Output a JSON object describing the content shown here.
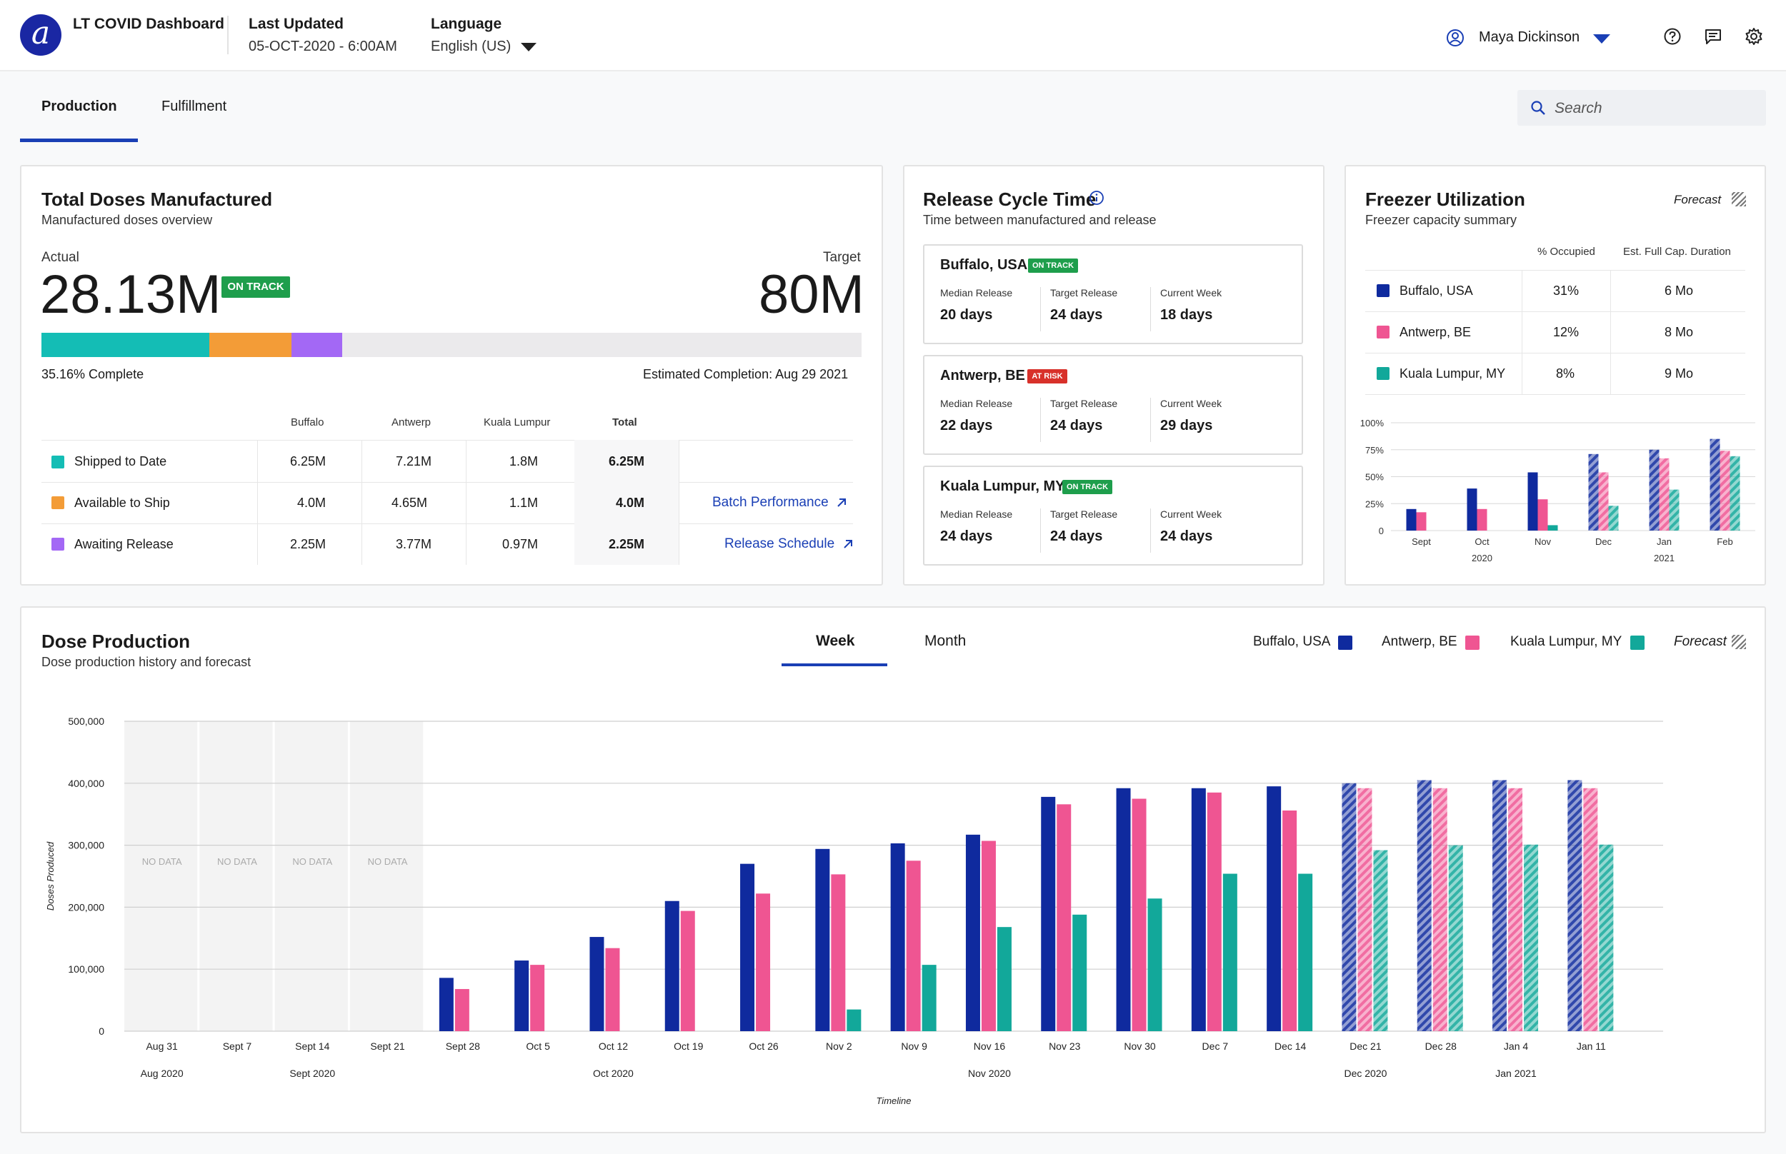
{
  "app": {
    "title": "LT COVID Dashboard",
    "logo_letter": "a",
    "last_updated_label": "Last Updated",
    "last_updated_value": "05-OCT-2020 - 6:00AM",
    "language_label": "Language",
    "language_value": "English (US)",
    "user_name": "Maya Dickinson"
  },
  "tabs": [
    "Production",
    "Fulfillment"
  ],
  "search": {
    "placeholder": "Search"
  },
  "doses": {
    "title": "Total Doses Manufactured",
    "subtitle": "Manufactured doses overview",
    "actual_label": "Actual",
    "actual_value": "28.13M",
    "status": "ON TRACK",
    "target_label": "Target",
    "target_value": "80M",
    "percent_complete": "35.16% Complete",
    "estimated_completion": "Estimated Completion: Aug 29 2021",
    "progress_segments": [
      {
        "name": "Shipped to Date",
        "percent": 20.5,
        "color": "#14bdb5"
      },
      {
        "name": "Available to Ship",
        "percent": 10.0,
        "color": "#f39c37"
      },
      {
        "name": "Awaiting Release",
        "percent": 6.2,
        "color": "#a368f5"
      }
    ],
    "columns": [
      "Buffalo",
      "Antwerp",
      "Kuala Lumpur",
      "Total"
    ],
    "rows": [
      {
        "label": "Shipped to Date",
        "color": "#14bdb5",
        "values": [
          "6.25M",
          "7.21M",
          "1.8M",
          "6.25M"
        ],
        "link": ""
      },
      {
        "label": "Available to Ship",
        "color": "#f39c37",
        "values": [
          "4.0M",
          "4.65M",
          "1.1M",
          "4.0M"
        ],
        "link": "Batch Performance"
      },
      {
        "label": "Awaiting Release",
        "color": "#a368f5",
        "values": [
          "2.25M",
          "3.77M",
          "0.97M",
          "2.25M"
        ],
        "link": "Release Schedule"
      }
    ]
  },
  "release": {
    "title": "Release Cycle Time",
    "subtitle": "Time between manufactured and release",
    "median_label": "Median Release",
    "target_label": "Target Release",
    "current_label": "Current Week",
    "sites": [
      {
        "city": "Buffalo, USA",
        "status": "ON TRACK",
        "median": "20 days",
        "target": "24 days",
        "current": "18 days"
      },
      {
        "city": "Antwerp, BE",
        "status": "AT RISK",
        "median": "22 days",
        "target": "24 days",
        "current": "29 days"
      },
      {
        "city": "Kuala Lumpur, MY",
        "status": "ON TRACK",
        "median": "24 days",
        "target": "24 days",
        "current": "24 days"
      }
    ]
  },
  "freezer": {
    "title": "Freezer Utilization",
    "subtitle": "Freezer capacity summary",
    "forecast_label": "Forecast",
    "col_occupied": "% Occupied",
    "col_duration": "Est. Full Cap. Duration",
    "rows": [
      {
        "site": "Buffalo, USA",
        "color": "#0f2a9e",
        "occupied": "31%",
        "duration": "6 Mo"
      },
      {
        "site": "Antwerp, BE",
        "color": "#ef5592",
        "occupied": "12%",
        "duration": "8 Mo"
      },
      {
        "site": "Kuala Lumpur, MY",
        "color": "#12a89a",
        "occupied": "8%",
        "duration": "9 Mo"
      }
    ]
  },
  "production": {
    "title": "Dose Production",
    "subtitle": "Dose production history and forecast",
    "period_tabs": [
      "Week",
      "Month"
    ],
    "legend": [
      "Buffalo, USA",
      "Antwerp, BE",
      "Kuala Lumpur, MY"
    ],
    "forecast_label": "Forecast"
  },
  "colors": {
    "buffalo": "#0f2a9e",
    "antwerp": "#ef5592",
    "kuala_lumpur": "#12a89a",
    "accent": "#1a3fb5"
  },
  "chart_data": [
    {
      "type": "bar",
      "title": "Freezer Utilization",
      "categories": [
        "Sept",
        "Oct",
        "Nov",
        "Dec",
        "Jan",
        "Feb"
      ],
      "group_labels": [
        {
          "label": "2020",
          "under": "Oct"
        },
        {
          "label": "2021",
          "under": "Jan"
        }
      ],
      "y_ticks": [
        "100%",
        "75%",
        "50%",
        "25%",
        "0"
      ],
      "ylim": [
        0,
        100
      ],
      "forecast_from_index": 3,
      "series": [
        {
          "name": "Buffalo, USA",
          "values": [
            20,
            39,
            54,
            71,
            75,
            85
          ]
        },
        {
          "name": "Antwerp, BE",
          "values": [
            17,
            20,
            29,
            54,
            67,
            74
          ]
        },
        {
          "name": "Kuala Lumpur, MY",
          "values": [
            0,
            0,
            5,
            23,
            38,
            69
          ]
        }
      ]
    },
    {
      "type": "bar",
      "title": "Dose Production",
      "ylabel": "Doses Produced",
      "xlabel": "Timeline",
      "categories": [
        "Aug 31",
        "Sept 7",
        "Sept 14",
        "Sept 21",
        "Sept 28",
        "Oct 5",
        "Oct 12",
        "Oct 19",
        "Oct 26",
        "Nov 2",
        "Nov 9",
        "Nov 16",
        "Nov 23",
        "Nov 30",
        "Dec 7",
        "Dec 14",
        "Dec 21",
        "Dec 28",
        "Jan 4",
        "Jan 11"
      ],
      "month_labels": [
        {
          "label": "Aug 2020",
          "under": "Aug 31"
        },
        {
          "label": "Sept 2020",
          "under": "Sept 14"
        },
        {
          "label": "Oct 2020",
          "under": "Oct 12"
        },
        {
          "label": "Nov 2020",
          "under": "Nov 16"
        },
        {
          "label": "Dec 2020",
          "under": "Dec 21"
        },
        {
          "label": "Jan 2021",
          "under": "Jan 4"
        }
      ],
      "y_ticks": [
        "500,000",
        "400,000",
        "300,000",
        "200,000",
        "100,000",
        "0"
      ],
      "ylim": [
        0,
        500000
      ],
      "no_data_label": "NO DATA",
      "no_data_count": 4,
      "forecast_from_index": 16,
      "series": [
        {
          "name": "Buffalo, USA",
          "values": [
            null,
            null,
            null,
            null,
            86000,
            114000,
            152000,
            210000,
            270000,
            294000,
            303000,
            317000,
            378000,
            392000,
            392000,
            395000,
            400000,
            405000,
            405000,
            405000
          ]
        },
        {
          "name": "Antwerp, BE",
          "values": [
            null,
            null,
            null,
            null,
            68000,
            107000,
            134000,
            194000,
            222000,
            253000,
            275000,
            307000,
            366000,
            375000,
            385000,
            356000,
            392000,
            392000,
            392000,
            392000
          ]
        },
        {
          "name": "Kuala Lumpur, MY",
          "values": [
            null,
            null,
            null,
            null,
            0,
            0,
            0,
            0,
            0,
            35000,
            107000,
            168000,
            188000,
            214000,
            254000,
            254000,
            292000,
            300000,
            301000,
            301000
          ]
        }
      ]
    }
  ]
}
